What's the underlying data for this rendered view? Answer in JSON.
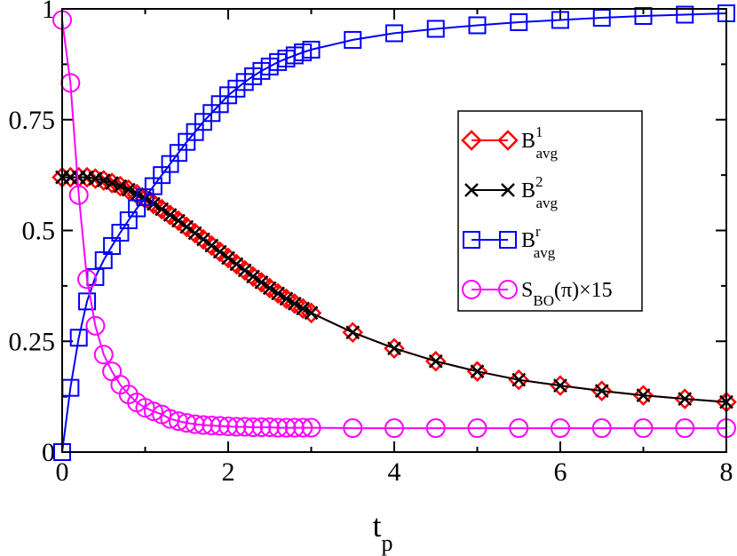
{
  "chart_data": {
    "type": "line",
    "xlabel": {
      "main": "t",
      "sub": "p"
    },
    "xlim": [
      0,
      8
    ],
    "ylim": [
      0,
      1
    ],
    "x_ticks": [
      0,
      2,
      4,
      6,
      8
    ],
    "x_tick_labels": [
      "0",
      "2",
      "4",
      "6",
      "8"
    ],
    "y_ticks": [
      0,
      0.25,
      0.5,
      0.75,
      1
    ],
    "y_tick_labels": [
      "0",
      "0.25",
      "0.5",
      "0.75",
      "1"
    ],
    "grid": false,
    "legend_position": "upper-right",
    "series": [
      {
        "id": "b1",
        "legend": {
          "main": "B",
          "sup": "1",
          "sub": "avg",
          "tail": ""
        },
        "color": "#ff0000",
        "marker": "diamond",
        "x": [
          0,
          0.1,
          0.2,
          0.3,
          0.4,
          0.5,
          0.6,
          0.7,
          0.8,
          0.9,
          1.0,
          1.1,
          1.2,
          1.3,
          1.4,
          1.5,
          1.6,
          1.7,
          1.8,
          1.9,
          2.0,
          2.1,
          2.2,
          2.3,
          2.4,
          2.5,
          2.6,
          2.7,
          2.8,
          2.9,
          3.0,
          3.5,
          4.0,
          4.5,
          5.0,
          5.5,
          6.0,
          6.5,
          7.0,
          7.5,
          8.0
        ],
        "y": [
          0.62,
          0.62,
          0.62,
          0.62,
          0.617,
          0.613,
          0.607,
          0.6,
          0.592,
          0.582,
          0.572,
          0.56,
          0.548,
          0.535,
          0.522,
          0.508,
          0.494,
          0.48,
          0.466,
          0.452,
          0.438,
          0.424,
          0.41,
          0.396,
          0.383,
          0.37,
          0.358,
          0.346,
          0.335,
          0.324,
          0.314,
          0.27,
          0.234,
          0.205,
          0.182,
          0.163,
          0.15,
          0.138,
          0.128,
          0.12,
          0.113
        ]
      },
      {
        "id": "b2",
        "legend": {
          "main": "B",
          "sup": "2",
          "sub": "avg",
          "tail": ""
        },
        "color": "#000000",
        "marker": "x",
        "x": [
          0,
          0.1,
          0.2,
          0.3,
          0.4,
          0.5,
          0.6,
          0.7,
          0.8,
          0.9,
          1.0,
          1.1,
          1.2,
          1.3,
          1.4,
          1.5,
          1.6,
          1.7,
          1.8,
          1.9,
          2.0,
          2.1,
          2.2,
          2.3,
          2.4,
          2.5,
          2.6,
          2.7,
          2.8,
          2.9,
          3.0,
          3.5,
          4.0,
          4.5,
          5.0,
          5.5,
          6.0,
          6.5,
          7.0,
          7.5,
          8.0
        ],
        "y": [
          0.62,
          0.62,
          0.62,
          0.62,
          0.617,
          0.613,
          0.607,
          0.6,
          0.592,
          0.582,
          0.572,
          0.56,
          0.548,
          0.535,
          0.522,
          0.508,
          0.494,
          0.48,
          0.466,
          0.452,
          0.438,
          0.424,
          0.41,
          0.396,
          0.383,
          0.37,
          0.358,
          0.346,
          0.335,
          0.324,
          0.314,
          0.27,
          0.234,
          0.205,
          0.182,
          0.163,
          0.15,
          0.138,
          0.128,
          0.12,
          0.113
        ]
      },
      {
        "id": "br",
        "legend": {
          "main": "B",
          "sup": "r",
          "sub": "avg",
          "tail": ""
        },
        "color": "#0000ff",
        "marker": "square",
        "x": [
          0,
          0.1,
          0.2,
          0.3,
          0.4,
          0.5,
          0.6,
          0.7,
          0.8,
          0.9,
          1.0,
          1.1,
          1.2,
          1.3,
          1.4,
          1.5,
          1.6,
          1.7,
          1.8,
          1.9,
          2.0,
          2.1,
          2.2,
          2.3,
          2.4,
          2.5,
          2.6,
          2.7,
          2.8,
          2.9,
          3.0,
          3.5,
          4.0,
          4.5,
          5.0,
          5.5,
          6.0,
          6.5,
          7.0,
          7.5,
          8.0
        ],
        "y": [
          0.0,
          0.145,
          0.258,
          0.34,
          0.395,
          0.433,
          0.465,
          0.495,
          0.523,
          0.55,
          0.575,
          0.6,
          0.625,
          0.65,
          0.675,
          0.7,
          0.722,
          0.745,
          0.765,
          0.785,
          0.805,
          0.82,
          0.835,
          0.848,
          0.86,
          0.87,
          0.88,
          0.888,
          0.895,
          0.902,
          0.908,
          0.93,
          0.945,
          0.955,
          0.963,
          0.97,
          0.975,
          0.98,
          0.984,
          0.987,
          0.99
        ]
      },
      {
        "id": "sbo",
        "legend": {
          "main": "S",
          "sup": "",
          "sub": "BO",
          "tail": "(π)×15"
        },
        "color": "#ff00ff",
        "marker": "circle",
        "x": [
          0,
          0.1,
          0.2,
          0.3,
          0.4,
          0.5,
          0.6,
          0.7,
          0.8,
          0.9,
          1.0,
          1.1,
          1.2,
          1.3,
          1.4,
          1.5,
          1.6,
          1.7,
          1.8,
          1.9,
          2.0,
          2.1,
          2.2,
          2.3,
          2.4,
          2.5,
          2.6,
          2.7,
          2.8,
          2.9,
          3.0,
          3.5,
          4.0,
          4.5,
          5.0,
          5.5,
          6.0,
          6.5,
          7.0,
          7.5,
          8.0
        ],
        "y": [
          0.975,
          0.833,
          0.58,
          0.39,
          0.285,
          0.22,
          0.182,
          0.152,
          0.13,
          0.112,
          0.1,
          0.092,
          0.085,
          0.075,
          0.07,
          0.066,
          0.063,
          0.061,
          0.06,
          0.059,
          0.058,
          0.057,
          0.057,
          0.056,
          0.056,
          0.056,
          0.055,
          0.055,
          0.055,
          0.055,
          0.055,
          0.054,
          0.054,
          0.054,
          0.054,
          0.054,
          0.054,
          0.054,
          0.054,
          0.054,
          0.054
        ]
      }
    ]
  }
}
